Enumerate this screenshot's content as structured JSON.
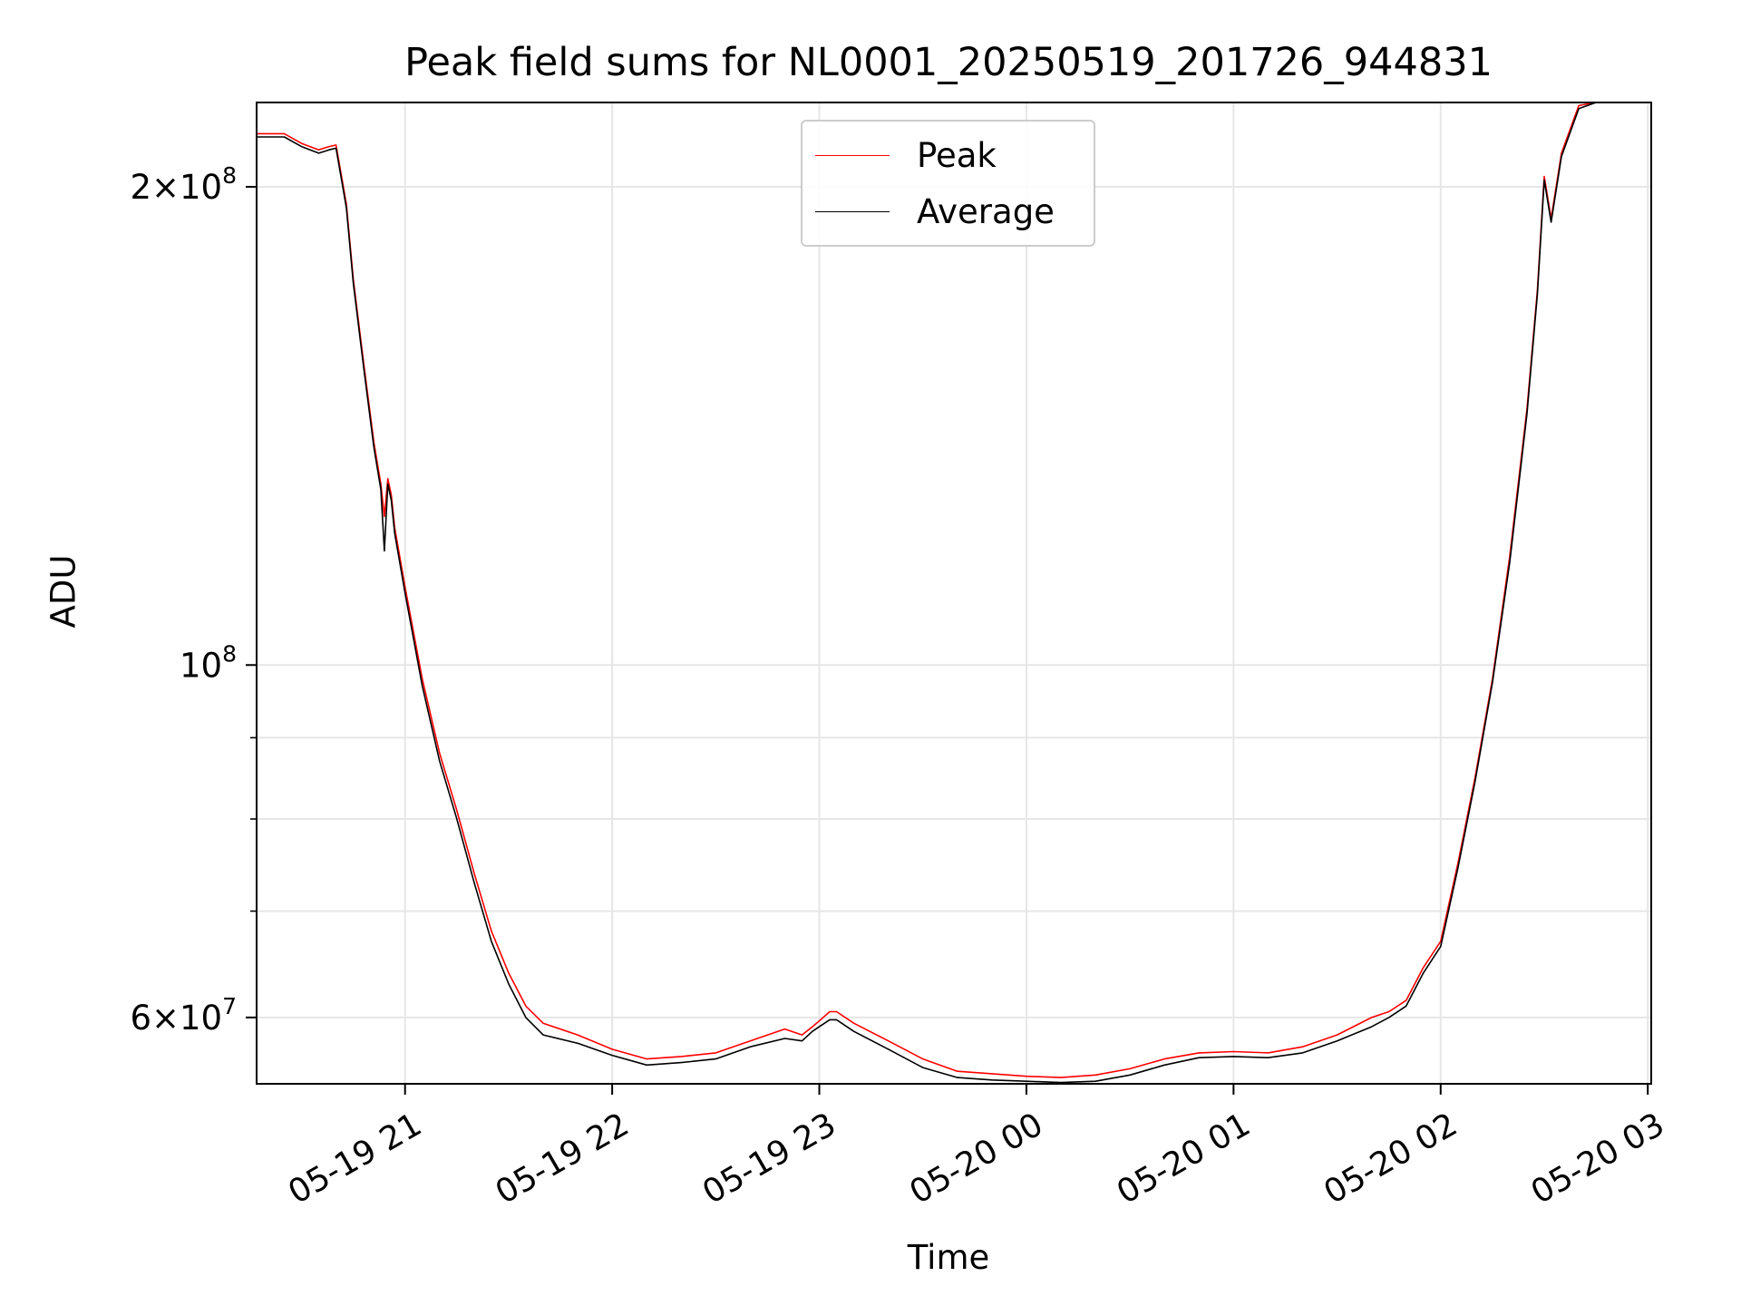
{
  "chart_data": {
    "type": "line",
    "title": "Peak field sums for NL0001_20250519_201726_944831",
    "xlabel": "Time",
    "ylabel": "ADU",
    "x_axis": "datetime",
    "xlim": [
      "2025-05-19 20:17",
      "2025-05-20 03:01"
    ],
    "ylim": [
      54500000,
      226000000
    ],
    "y_scale": "log",
    "grid": true,
    "legend_placement": "top-center",
    "x_ticks": [
      "05-19 21",
      "05-19 22",
      "05-19 23",
      "05-20 00",
      "05-20 01",
      "05-20 02",
      "05-20 03"
    ],
    "y_ticks_major": [
      {
        "value": 60000000,
        "mantissa": "6",
        "exponent": "7"
      },
      {
        "value": 100000000,
        "mantissa": "",
        "exponent": "8"
      },
      {
        "value": 200000000,
        "mantissa": "2",
        "exponent": "8"
      }
    ],
    "y_ticks_minor": [
      70000000,
      80000000,
      90000000
    ],
    "series": [
      {
        "name": "Peak",
        "color": "#ff0000",
        "x": [
          "2025-05-19 20:17",
          "2025-05-19 20:25",
          "2025-05-19 20:30",
          "2025-05-19 20:35",
          "2025-05-19 20:38",
          "2025-05-19 20:40",
          "2025-05-19 20:43",
          "2025-05-19 20:45",
          "2025-05-19 20:48",
          "2025-05-19 20:51",
          "2025-05-19 20:53",
          "2025-05-19 20:54",
          "2025-05-19 20:55",
          "2025-05-19 20:56",
          "2025-05-19 20:57",
          "2025-05-19 21:00",
          "2025-05-19 21:05",
          "2025-05-19 21:10",
          "2025-05-19 21:15",
          "2025-05-19 21:20",
          "2025-05-19 21:25",
          "2025-05-19 21:30",
          "2025-05-19 21:35",
          "2025-05-19 21:40",
          "2025-05-19 21:50",
          "2025-05-19 22:00",
          "2025-05-19 22:10",
          "2025-05-19 22:20",
          "2025-05-19 22:30",
          "2025-05-19 22:40",
          "2025-05-19 22:50",
          "2025-05-19 22:55",
          "2025-05-19 22:58",
          "2025-05-19 23:00",
          "2025-05-19 23:03",
          "2025-05-19 23:05",
          "2025-05-19 23:10",
          "2025-05-19 23:20",
          "2025-05-19 23:30",
          "2025-05-19 23:40",
          "2025-05-19 23:50",
          "2025-05-20 00:00",
          "2025-05-20 00:10",
          "2025-05-20 00:20",
          "2025-05-20 00:30",
          "2025-05-20 00:40",
          "2025-05-20 00:50",
          "2025-05-20 01:00",
          "2025-05-20 01:10",
          "2025-05-20 01:20",
          "2025-05-20 01:30",
          "2025-05-20 01:40",
          "2025-05-20 01:45",
          "2025-05-20 01:50",
          "2025-05-20 01:55",
          "2025-05-20 02:00",
          "2025-05-20 02:05",
          "2025-05-20 02:10",
          "2025-05-20 02:15",
          "2025-05-20 02:20",
          "2025-05-20 02:25",
          "2025-05-20 02:28",
          "2025-05-20 02:30",
          "2025-05-20 02:32",
          "2025-05-20 02:35",
          "2025-05-20 02:40",
          "2025-05-20 02:45",
          "2025-05-20 02:50",
          "2025-05-20 03:01"
        ],
        "y": [
          216000000,
          216000000,
          213000000,
          211000000,
          212000000,
          212500000,
          195000000,
          175000000,
          155000000,
          138000000,
          130000000,
          124000000,
          131000000,
          128000000,
          122000000,
          112000000,
          98000000,
          88000000,
          81000000,
          74000000,
          68000000,
          64000000,
          61000000,
          59500000,
          58500000,
          57300000,
          56500000,
          56700000,
          57000000,
          58000000,
          59000000,
          58500000,
          59200000,
          59700000,
          60500000,
          60500000,
          59500000,
          58000000,
          56500000,
          55500000,
          55300000,
          55100000,
          55000000,
          55200000,
          55700000,
          56500000,
          57000000,
          57100000,
          57000000,
          57500000,
          58500000,
          60000000,
          60500000,
          61500000,
          64500000,
          67000000,
          75000000,
          85000000,
          98000000,
          117000000,
          145000000,
          172000000,
          203000000,
          191000000,
          210000000,
          225000000,
          226000000,
          226000000,
          226000000
        ]
      },
      {
        "name": "Average",
        "color": "#000000",
        "x": [
          "2025-05-19 20:17",
          "2025-05-19 20:25",
          "2025-05-19 20:30",
          "2025-05-19 20:35",
          "2025-05-19 20:38",
          "2025-05-19 20:40",
          "2025-05-19 20:43",
          "2025-05-19 20:45",
          "2025-05-19 20:48",
          "2025-05-19 20:51",
          "2025-05-19 20:53",
          "2025-05-19 20:54",
          "2025-05-19 20:55",
          "2025-05-19 20:56",
          "2025-05-19 20:57",
          "2025-05-19 21:00",
          "2025-05-19 21:05",
          "2025-05-19 21:10",
          "2025-05-19 21:15",
          "2025-05-19 21:20",
          "2025-05-19 21:25",
          "2025-05-19 21:30",
          "2025-05-19 21:35",
          "2025-05-19 21:40",
          "2025-05-19 21:50",
          "2025-05-19 22:00",
          "2025-05-19 22:10",
          "2025-05-19 22:20",
          "2025-05-19 22:30",
          "2025-05-19 22:40",
          "2025-05-19 22:50",
          "2025-05-19 22:55",
          "2025-05-19 22:58",
          "2025-05-19 23:00",
          "2025-05-19 23:03",
          "2025-05-19 23:05",
          "2025-05-19 23:10",
          "2025-05-19 23:20",
          "2025-05-19 23:30",
          "2025-05-19 23:40",
          "2025-05-19 23:50",
          "2025-05-20 00:00",
          "2025-05-20 00:10",
          "2025-05-20 00:20",
          "2025-05-20 00:30",
          "2025-05-20 00:40",
          "2025-05-20 00:50",
          "2025-05-20 01:00",
          "2025-05-20 01:10",
          "2025-05-20 01:20",
          "2025-05-20 01:30",
          "2025-05-20 01:40",
          "2025-05-20 01:45",
          "2025-05-20 01:50",
          "2025-05-20 01:55",
          "2025-05-20 02:00",
          "2025-05-20 02:05",
          "2025-05-20 02:10",
          "2025-05-20 02:15",
          "2025-05-20 02:20",
          "2025-05-20 02:25",
          "2025-05-20 02:28",
          "2025-05-20 02:30",
          "2025-05-20 02:32",
          "2025-05-20 02:35",
          "2025-05-20 02:40",
          "2025-05-20 02:45",
          "2025-05-20 02:50",
          "2025-05-20 03:01"
        ],
        "y": [
          215000000,
          215000000,
          212000000,
          210000000,
          211000000,
          211500000,
          194000000,
          174000000,
          154000000,
          137000000,
          129000000,
          118000000,
          130000000,
          127000000,
          121000000,
          111000000,
          97000000,
          87000000,
          80000000,
          73000000,
          67000000,
          63000000,
          60000000,
          58500000,
          57800000,
          56800000,
          56000000,
          56200000,
          56500000,
          57500000,
          58200000,
          58000000,
          58800000,
          59200000,
          59800000,
          59800000,
          58800000,
          57300000,
          55800000,
          55000000,
          54800000,
          54700000,
          54600000,
          54700000,
          55200000,
          56000000,
          56600000,
          56700000,
          56600000,
          57000000,
          58000000,
          59200000,
          60000000,
          61000000,
          64000000,
          66500000,
          74500000,
          84500000,
          97500000,
          116000000,
          144000000,
          171000000,
          202000000,
          190000000,
          209000000,
          224000000,
          226000000,
          226000000,
          226000000
        ]
      }
    ]
  }
}
